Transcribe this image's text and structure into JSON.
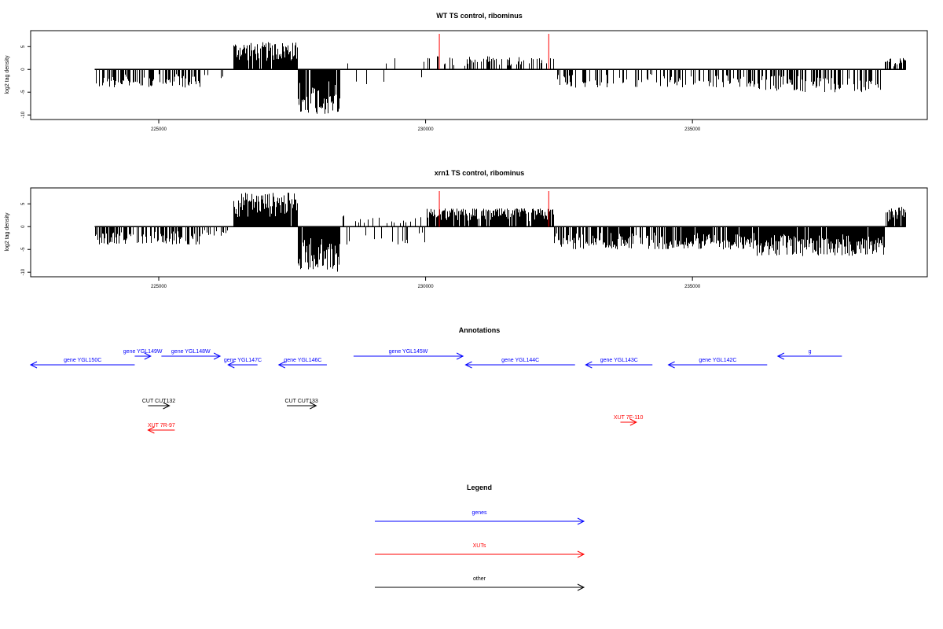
{
  "chart_data": [
    {
      "type": "bar",
      "title": "WT TS control, ribominus",
      "ylabel": "log2 tag density",
      "xlabel": "",
      "xlim": [
        222600,
        239400
      ],
      "ylim": [
        -11,
        8.5
      ],
      "xticks": [
        225000,
        230000,
        235000
      ],
      "yticks": [
        5,
        0,
        -5,
        -10
      ],
      "grid": false,
      "markers": [
        230250,
        232300
      ],
      "marker_color": "#ff0000",
      "density_regions": [
        {
          "start": 223800,
          "end": 225800,
          "min": -4,
          "max": 0,
          "density": 0.55
        },
        {
          "start": 225800,
          "end": 226400,
          "min": -2,
          "max": 0,
          "density": 0.12
        },
        {
          "start": 226400,
          "end": 227600,
          "min": 0,
          "max": 6,
          "density": 0.95
        },
        {
          "start": 227600,
          "end": 228400,
          "min": -10,
          "max": 0,
          "density": 0.95
        },
        {
          "start": 228400,
          "end": 230000,
          "min": -3.5,
          "max": 2.5,
          "density": 0.12
        },
        {
          "start": 230000,
          "end": 232400,
          "min": 0,
          "max": 3,
          "density": 0.28
        },
        {
          "start": 232400,
          "end": 236200,
          "min": -4,
          "max": 0,
          "density": 0.35
        },
        {
          "start": 236200,
          "end": 238600,
          "min": -5,
          "max": 0,
          "density": 0.55
        },
        {
          "start": 238600,
          "end": 239000,
          "min": 0,
          "max": 2.5,
          "density": 0.6
        }
      ]
    },
    {
      "type": "bar",
      "title": "xrn1 TS control, ribominus",
      "ylabel": "log2 tag density",
      "xlabel": "",
      "xlim": [
        222600,
        239400
      ],
      "ylim": [
        -11,
        8.5
      ],
      "xticks": [
        225000,
        230000,
        235000
      ],
      "yticks": [
        5,
        0,
        -5,
        -10
      ],
      "grid": false,
      "markers": [
        230250,
        232300
      ],
      "marker_color": "#ff0000",
      "density_regions": [
        {
          "start": 223800,
          "end": 225800,
          "min": -4,
          "max": 0,
          "density": 0.6
        },
        {
          "start": 225800,
          "end": 226400,
          "min": -2,
          "max": 0,
          "density": 0.2
        },
        {
          "start": 226400,
          "end": 227600,
          "min": 0,
          "max": 7.5,
          "density": 0.98
        },
        {
          "start": 227600,
          "end": 228400,
          "min": -10,
          "max": 0,
          "density": 0.98
        },
        {
          "start": 228400,
          "end": 230000,
          "min": -4,
          "max": 2.5,
          "density": 0.35
        },
        {
          "start": 230000,
          "end": 232400,
          "min": 0,
          "max": 4,
          "density": 0.85
        },
        {
          "start": 232400,
          "end": 236200,
          "min": -5,
          "max": 0,
          "density": 0.8
        },
        {
          "start": 236200,
          "end": 238600,
          "min": -6.5,
          "max": 0,
          "density": 0.95
        },
        {
          "start": 238600,
          "end": 239000,
          "min": 0,
          "max": 4.5,
          "density": 0.9
        }
      ]
    }
  ],
  "annotations": {
    "title": "Annotations",
    "features": [
      {
        "label": "gene YGL150C",
        "start": 222600,
        "end": 224550,
        "strand": "-",
        "row": 1,
        "color": "#0000ff"
      },
      {
        "label": "gene YGL149W",
        "start": 224550,
        "end": 224850,
        "strand": "+",
        "row": 0,
        "color": "#0000ff"
      },
      {
        "label": "gene YGL148W",
        "start": 225050,
        "end": 226150,
        "strand": "+",
        "row": 0,
        "color": "#0000ff"
      },
      {
        "label": "gene YGL147C",
        "start": 226300,
        "end": 226850,
        "strand": "-",
        "row": 1,
        "color": "#0000ff"
      },
      {
        "label": "gene YGL146C",
        "start": 227250,
        "end": 228150,
        "strand": "-",
        "row": 1,
        "color": "#0000ff"
      },
      {
        "label": "gene YGL145W",
        "start": 228650,
        "end": 230700,
        "strand": "+",
        "row": 0,
        "color": "#0000ff"
      },
      {
        "label": "gene YGL144C",
        "start": 230750,
        "end": 232800,
        "strand": "-",
        "row": 1,
        "color": "#0000ff"
      },
      {
        "label": "gene YGL143C",
        "start": 233000,
        "end": 234250,
        "strand": "-",
        "row": 1,
        "color": "#0000ff"
      },
      {
        "label": "gene YGL142C",
        "start": 234550,
        "end": 236400,
        "strand": "-",
        "row": 1,
        "color": "#0000ff"
      },
      {
        "label": "g",
        "start": 236600,
        "end": 237800,
        "strand": "-",
        "row": 0,
        "color": "#0000ff"
      },
      {
        "label": "CUT CUT132",
        "start": 224800,
        "end": 225200,
        "strand": "+",
        "row": 2,
        "color": "#000000"
      },
      {
        "label": "CUT CUT133",
        "start": 227400,
        "end": 227950,
        "strand": "+",
        "row": 2,
        "color": "#000000"
      },
      {
        "label": "XUT 7R-97",
        "start": 224800,
        "end": 225300,
        "strand": "-",
        "row": 3,
        "color": "#ff0000"
      },
      {
        "label": "XUT 7F-110",
        "start": 233650,
        "end": 233950,
        "strand": "+",
        "row": 4,
        "color": "#ff0000"
      }
    ]
  },
  "legend": {
    "title": "Legend",
    "items": [
      {
        "label": "genes",
        "color": "#0000ff"
      },
      {
        "label": "XUTs",
        "color": "#ff0000"
      },
      {
        "label": "other",
        "color": "#000000"
      }
    ]
  }
}
